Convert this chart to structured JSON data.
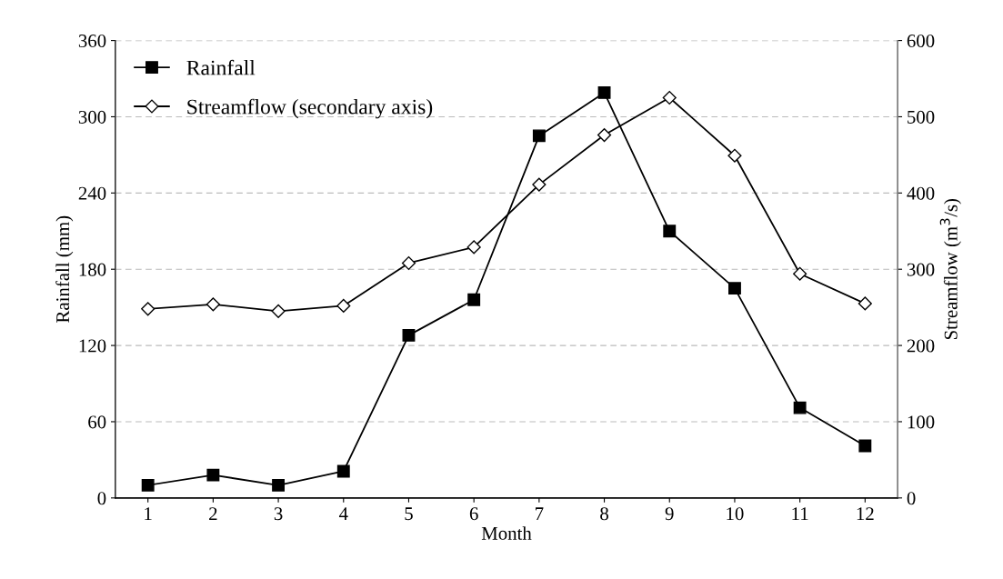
{
  "chart_data": {
    "type": "line",
    "xlabel": "Month",
    "ylabel": "Rainfall (mm)",
    "y2label": "Streamflow (m$^{3}$/s)",
    "categories": [
      "1",
      "2",
      "3",
      "4",
      "5",
      "6",
      "7",
      "8",
      "9",
      "10",
      "11",
      "12"
    ],
    "series": [
      {
        "name": "Rainfall",
        "color": "#000000",
        "marker": "square",
        "values": [
          10,
          18,
          10,
          21,
          128,
          156,
          285,
          319,
          210,
          165,
          71,
          41
        ]
      },
      {
        "name": "Streamflow (secondary axis)",
        "color": "#000000",
        "marker": "diamond",
        "axis": "y2",
        "values": [
          248,
          254,
          245,
          252,
          308,
          329,
          411,
          476,
          525,
          449,
          294,
          255
        ]
      }
    ],
    "ylim": [
      0,
      360
    ],
    "yticks": [
      0,
      60,
      120,
      180,
      240,
      300,
      360
    ],
    "y2lim": [
      0,
      600
    ],
    "y2ticks": [
      0,
      100,
      200,
      300,
      400,
      500,
      600
    ],
    "grid": "y",
    "legend": "top left",
    "line_style": "solid"
  }
}
